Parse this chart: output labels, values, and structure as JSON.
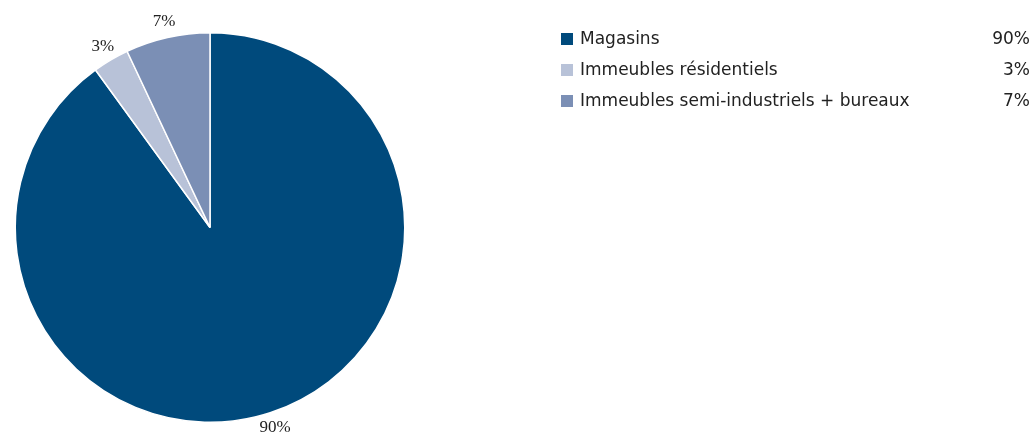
{
  "chart_data": {
    "type": "pie",
    "categories": [
      "Magasins",
      "Immeubles résidentiels",
      "Immeubles semi-industriels + bureaux"
    ],
    "values": [
      90,
      3,
      7
    ],
    "colors": [
      "#004a7c",
      "#b8c2d8",
      "#7b8fb5"
    ],
    "value_labels": [
      "90%",
      "3%",
      "7%"
    ],
    "legend": "top right"
  }
}
